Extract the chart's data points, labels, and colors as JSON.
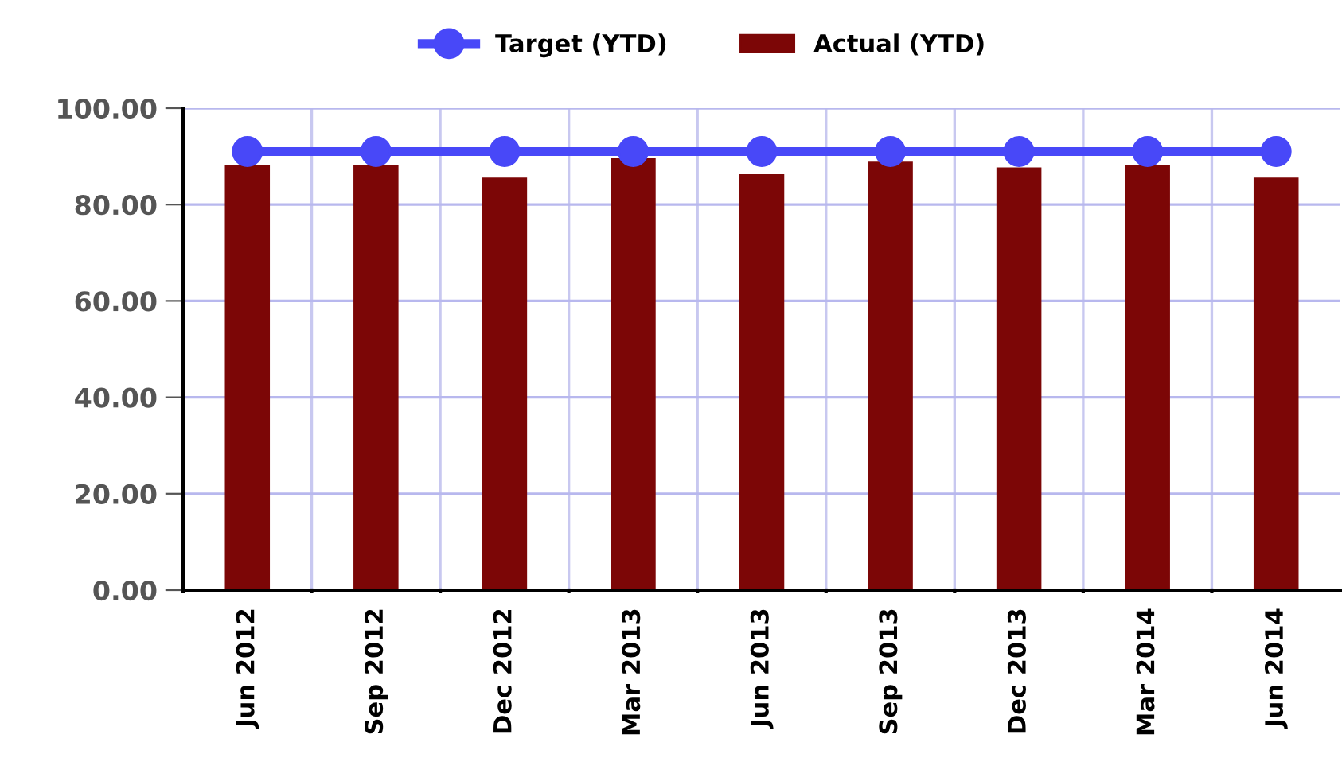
{
  "chart_data": {
    "type": "bar",
    "categories": [
      "Jun 2012",
      "Sep 2012",
      "Dec 2012",
      "Mar 2013",
      "Jun 2013",
      "Sep 2013",
      "Dec 2013",
      "Mar 2014",
      "Jun 2014"
    ],
    "series": [
      {
        "name": "Target (YTD)",
        "type": "line",
        "color": "#4848f8",
        "marker": "circle",
        "values": [
          91,
          91,
          91,
          91,
          91,
          91,
          91,
          91,
          91
        ]
      },
      {
        "name": "Actual (YTD)",
        "color": "#7c0606",
        "values": [
          88.3,
          88.3,
          85.6,
          89.6,
          86.3,
          88.9,
          87.7,
          88.3,
          85.6
        ]
      }
    ],
    "ylim": [
      0,
      100
    ],
    "yticks": [
      {
        "value": 0,
        "label": "0.00"
      },
      {
        "value": 20,
        "label": "20.00"
      },
      {
        "value": 40,
        "label": "40.00"
      },
      {
        "value": 60,
        "label": "60.00"
      },
      {
        "value": 80,
        "label": "80.00"
      },
      {
        "value": 100,
        "label": "100.00"
      }
    ],
    "grid": true,
    "legend": "top"
  }
}
